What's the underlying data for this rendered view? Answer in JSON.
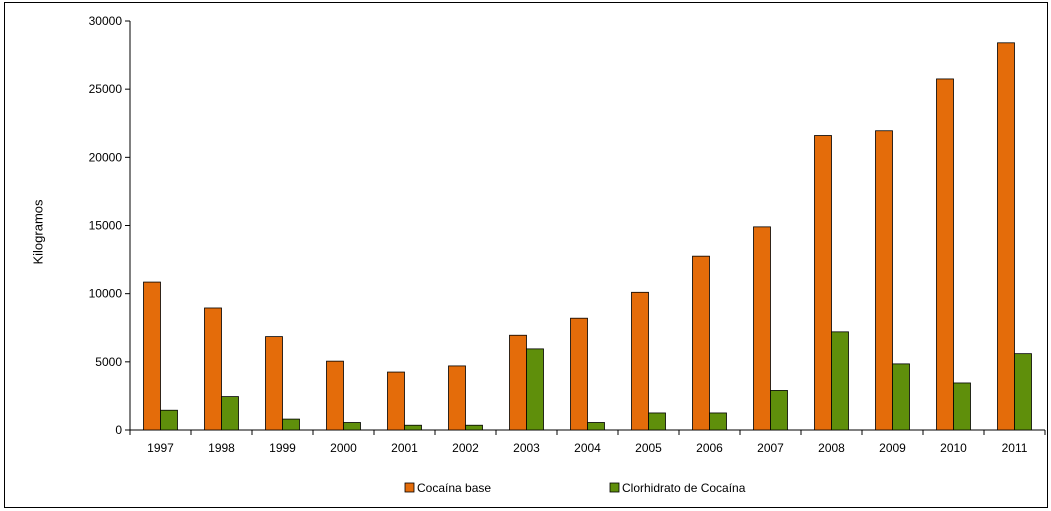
{
  "chart_data": {
    "type": "bar",
    "title": "",
    "xlabel": "",
    "ylabel": "Kilogramos",
    "ylim": [
      0,
      30000
    ],
    "yticks": [
      0,
      5000,
      10000,
      15000,
      20000,
      25000,
      30000
    ],
    "grid": false,
    "legend_position": "bottom",
    "categories": [
      "1997",
      "1998",
      "1999",
      "2000",
      "2001",
      "2002",
      "2003",
      "2004",
      "2005",
      "2006",
      "2007",
      "2008",
      "2009",
      "2010",
      "2011"
    ],
    "series": [
      {
        "name": "Cocaína base",
        "color": "#E46C0A",
        "values": [
          10850,
          8950,
          6850,
          5050,
          4250,
          4700,
          6950,
          8200,
          10100,
          12750,
          14900,
          21600,
          21950,
          25750,
          28400
        ]
      },
      {
        "name": "Clorhidrato de Cocaína",
        "color": "#5F8F0B",
        "values": [
          1450,
          2450,
          800,
          550,
          350,
          350,
          5950,
          550,
          1250,
          1250,
          2900,
          7200,
          4850,
          3450,
          5600
        ]
      }
    ]
  }
}
